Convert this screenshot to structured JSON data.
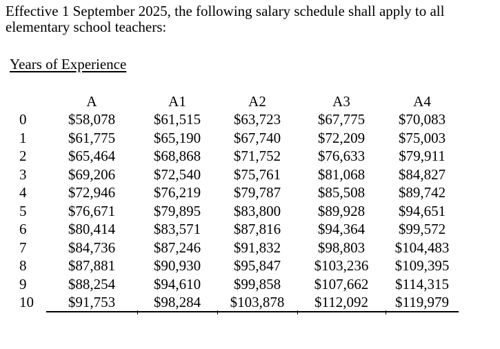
{
  "page": {
    "intro_lines": [
      "Effective 1 September 2025, the following salary schedule shall apply to all",
      "elementary school teachers:"
    ],
    "section_heading": "Years of Experience"
  },
  "table": {
    "years_column_header": "",
    "columns": [
      "A",
      "A1",
      "A2",
      "A3",
      "A4"
    ],
    "rows": [
      {
        "years": "0",
        "values": [
          "$58,078",
          "$61,515",
          "$63,723",
          "$67,775",
          "$70,083"
        ]
      },
      {
        "years": "1",
        "values": [
          "$61,775",
          "$65,190",
          "$67,740",
          "$72,209",
          "$75,003"
        ]
      },
      {
        "years": "2",
        "values": [
          "$65,464",
          "$68,868",
          "$71,752",
          "$76,633",
          "$79,911"
        ]
      },
      {
        "years": "3",
        "values": [
          "$69,206",
          "$72,540",
          "$75,761",
          "$81,068",
          "$84,827"
        ]
      },
      {
        "years": "4",
        "values": [
          "$72,946",
          "$76,219",
          "$79,787",
          "$85,508",
          "$89,742"
        ]
      },
      {
        "years": "5",
        "values": [
          "$76,671",
          "$79,895",
          "$83,800",
          "$89,928",
          "$94,651"
        ]
      },
      {
        "years": "6",
        "values": [
          "$80,414",
          "$83,571",
          "$87,816",
          "$94,364",
          "$99,572"
        ]
      },
      {
        "years": "7",
        "values": [
          "$84,736",
          "$87,246",
          "$91,832",
          "$98,803",
          "$104,483"
        ]
      },
      {
        "years": "8",
        "values": [
          "$87,881",
          "$90,930",
          "$95,847",
          "$103,236",
          "$109,395"
        ]
      },
      {
        "years": "9",
        "values": [
          "$88,254",
          "$94,610",
          "$99,858",
          "$107,662",
          "$114,315"
        ]
      },
      {
        "years": "10",
        "values": [
          "$91,753",
          "$98,284",
          "$103,878",
          "$112,092",
          "$119,979"
        ]
      }
    ]
  },
  "colors": {
    "text": "#000000",
    "background": "#ffffff",
    "rule": "#000000"
  }
}
